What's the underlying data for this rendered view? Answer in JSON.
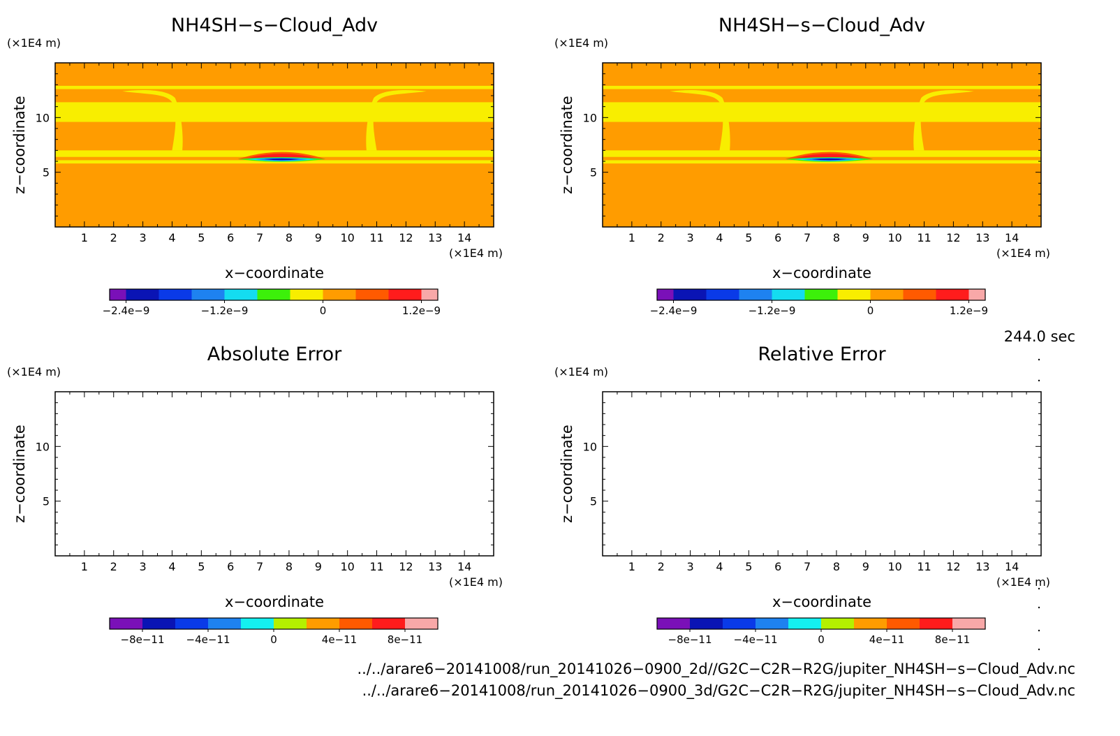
{
  "chart_data": [
    {
      "type": "heatmap",
      "title": "NH4SH−s−Cloud_Adv",
      "xlabel": "x−coordinate",
      "ylabel": "z−coordinate",
      "x_unit": "(×1E4 m)",
      "y_unit": "(×1E4 m)",
      "xlim": [
        0,
        15
      ],
      "ylim": [
        0,
        15
      ],
      "x_ticks": [
        1,
        2,
        3,
        4,
        5,
        6,
        7,
        8,
        9,
        10,
        11,
        12,
        13,
        14
      ],
      "y_ticks": [
        5,
        10
      ],
      "colorbar": {
        "min": -2.6e-09,
        "max": 1.4e-09,
        "labels": [
          {
            "value": -2.4e-09,
            "text": "−2.4e−9"
          },
          {
            "value": -1.2e-09,
            "text": "−1.2e−9"
          },
          {
            "value": 0,
            "text": "0"
          },
          {
            "value": 1.2e-09,
            "text": "1.2e−9"
          }
        ],
        "levels": [
          {
            "from": -2.6e-09,
            "to": -2.4e-09,
            "color": "#7a10b8"
          },
          {
            "from": -2.4e-09,
            "to": -2e-09,
            "color": "#0a14b4"
          },
          {
            "from": -2e-09,
            "to": -1.6e-09,
            "color": "#0a3ae8"
          },
          {
            "from": -1.6e-09,
            "to": -1.2e-09,
            "color": "#1e82f0"
          },
          {
            "from": -1.2e-09,
            "to": -8e-10,
            "color": "#14dcf0"
          },
          {
            "from": -8e-10,
            "to": -4e-10,
            "color": "#3cf00a"
          },
          {
            "from": -4e-10,
            "to": 0,
            "color": "#f8ee00"
          },
          {
            "from": 0,
            "to": 4e-10,
            "color": "#ff9c00"
          },
          {
            "from": 4e-10,
            "to": 8e-10,
            "color": "#ff5a00"
          },
          {
            "from": 8e-10,
            "to": 1.2e-09,
            "color": "#ff1c1c"
          },
          {
            "from": 1.2e-09,
            "to": 1.4e-09,
            "color": "#f8a8a8"
          }
        ]
      },
      "field": {
        "background": "#ff9c00",
        "bands": [
          {
            "z0": 12.6,
            "z1": 12.9,
            "color": "#f8ee00"
          },
          {
            "z0": 9.6,
            "z1": 11.4,
            "color": "#f8ee00"
          },
          {
            "z0": 6.4,
            "z1": 7.0,
            "color": "#f8ee00"
          },
          {
            "z0": 5.8,
            "z1": 6.1,
            "color": "#f8ee00"
          }
        ],
        "anomaly": {
          "x_center": 7.75,
          "z": 6.2,
          "half_width": 1.5,
          "thickness": 0.6
        }
      }
    },
    {
      "type": "heatmap",
      "title": "NH4SH−s−Cloud_Adv",
      "xlabel": "x−coordinate",
      "ylabel": "z−coordinate",
      "x_unit": "(×1E4 m)",
      "y_unit": "(×1E4 m)",
      "xlim": [
        0,
        15
      ],
      "ylim": [
        0,
        15
      ],
      "x_ticks": [
        1,
        2,
        3,
        4,
        5,
        6,
        7,
        8,
        9,
        10,
        11,
        12,
        13,
        14
      ],
      "y_ticks": [
        5,
        10
      ],
      "colorbar": {
        "min": -2.6e-09,
        "max": 1.4e-09,
        "labels": [
          {
            "value": -2.4e-09,
            "text": "−2.4e−9"
          },
          {
            "value": -1.2e-09,
            "text": "−1.2e−9"
          },
          {
            "value": 0,
            "text": "0"
          },
          {
            "value": 1.2e-09,
            "text": "1.2e−9"
          }
        ],
        "levels": [
          {
            "from": -2.6e-09,
            "to": -2.4e-09,
            "color": "#7a10b8"
          },
          {
            "from": -2.4e-09,
            "to": -2e-09,
            "color": "#0a14b4"
          },
          {
            "from": -2e-09,
            "to": -1.6e-09,
            "color": "#0a3ae8"
          },
          {
            "from": -1.6e-09,
            "to": -1.2e-09,
            "color": "#1e82f0"
          },
          {
            "from": -1.2e-09,
            "to": -8e-10,
            "color": "#14dcf0"
          },
          {
            "from": -8e-10,
            "to": -4e-10,
            "color": "#3cf00a"
          },
          {
            "from": -4e-10,
            "to": 0,
            "color": "#f8ee00"
          },
          {
            "from": 0,
            "to": 4e-10,
            "color": "#ff9c00"
          },
          {
            "from": 4e-10,
            "to": 8e-10,
            "color": "#ff5a00"
          },
          {
            "from": 8e-10,
            "to": 1.2e-09,
            "color": "#ff1c1c"
          },
          {
            "from": 1.2e-09,
            "to": 1.4e-09,
            "color": "#f8a8a8"
          }
        ]
      },
      "field": {
        "background": "#ff9c00",
        "bands": [
          {
            "z0": 12.6,
            "z1": 12.9,
            "color": "#f8ee00"
          },
          {
            "z0": 9.6,
            "z1": 11.4,
            "color": "#f8ee00"
          },
          {
            "z0": 6.4,
            "z1": 7.0,
            "color": "#f8ee00"
          },
          {
            "z0": 5.8,
            "z1": 6.1,
            "color": "#f8ee00"
          }
        ],
        "anomaly": {
          "x_center": 7.75,
          "z": 6.2,
          "half_width": 1.5,
          "thickness": 0.6
        }
      }
    },
    {
      "type": "heatmap",
      "title": "Absolute Error",
      "xlabel": "x−coordinate",
      "ylabel": "z−coordinate",
      "x_unit": "(×1E4 m)",
      "y_unit": "(×1E4 m)",
      "xlim": [
        0,
        15
      ],
      "ylim": [
        0,
        15
      ],
      "x_ticks": [
        1,
        2,
        3,
        4,
        5,
        6,
        7,
        8,
        9,
        10,
        11,
        12,
        13,
        14
      ],
      "y_ticks": [
        5,
        10
      ],
      "colorbar": {
        "min": -1e-10,
        "max": 1e-10,
        "labels": [
          {
            "value": -8e-11,
            "text": "−8e−11"
          },
          {
            "value": -4e-11,
            "text": "−4e−11"
          },
          {
            "value": 0,
            "text": "0"
          },
          {
            "value": 4e-11,
            "text": "4e−11"
          },
          {
            "value": 8e-11,
            "text": "8e−11"
          }
        ],
        "levels": [
          {
            "from": -1e-10,
            "to": -8e-11,
            "color": "#7a10b8"
          },
          {
            "from": -8e-11,
            "to": -6e-11,
            "color": "#0a14b4"
          },
          {
            "from": -6e-11,
            "to": -4e-11,
            "color": "#0a3ae8"
          },
          {
            "from": -4e-11,
            "to": -2e-11,
            "color": "#1e82f0"
          },
          {
            "from": -2e-11,
            "to": 0,
            "color": "#14f0f0"
          },
          {
            "from": 0,
            "to": 2e-11,
            "color": "#b4f000"
          },
          {
            "from": 2e-11,
            "to": 4e-11,
            "color": "#ff9c00"
          },
          {
            "from": 4e-11,
            "to": 6e-11,
            "color": "#ff5a00"
          },
          {
            "from": 6e-11,
            "to": 8e-11,
            "color": "#ff1c1c"
          },
          {
            "from": 8e-11,
            "to": 1e-10,
            "color": "#f8a8a8"
          }
        ]
      },
      "field": null
    },
    {
      "type": "heatmap",
      "title": "Relative Error",
      "xlabel": "x−coordinate",
      "ylabel": "z−coordinate",
      "x_unit": "(×1E4 m)",
      "y_unit": "(×1E4 m)",
      "xlim": [
        0,
        15
      ],
      "ylim": [
        0,
        15
      ],
      "x_ticks": [
        1,
        2,
        3,
        4,
        5,
        6,
        7,
        8,
        9,
        10,
        11,
        12,
        13,
        14
      ],
      "y_ticks": [
        5,
        10
      ],
      "colorbar": {
        "min": -1e-10,
        "max": 1e-10,
        "labels": [
          {
            "value": -8e-11,
            "text": "−8e−11"
          },
          {
            "value": -4e-11,
            "text": "−4e−11"
          },
          {
            "value": 0,
            "text": "0"
          },
          {
            "value": 4e-11,
            "text": "4e−11"
          },
          {
            "value": 8e-11,
            "text": "8e−11"
          }
        ],
        "levels": [
          {
            "from": -1e-10,
            "to": -8e-11,
            "color": "#7a10b8"
          },
          {
            "from": -8e-11,
            "to": -6e-11,
            "color": "#0a14b4"
          },
          {
            "from": -6e-11,
            "to": -4e-11,
            "color": "#0a3ae8"
          },
          {
            "from": -4e-11,
            "to": -2e-11,
            "color": "#1e82f0"
          },
          {
            "from": -2e-11,
            "to": 0,
            "color": "#14f0f0"
          },
          {
            "from": 0,
            "to": 2e-11,
            "color": "#b4f000"
          },
          {
            "from": 2e-11,
            "to": 4e-11,
            "color": "#ff9c00"
          },
          {
            "from": 4e-11,
            "to": 6e-11,
            "color": "#ff5a00"
          },
          {
            "from": 6e-11,
            "to": 8e-11,
            "color": "#ff1c1c"
          },
          {
            "from": 8e-11,
            "to": 1e-10,
            "color": "#f8a8a8"
          }
        ]
      },
      "field": null
    }
  ],
  "time_label": "244.0 sec",
  "footer": {
    "file_2d": "../../arare6−20141008/run_20141026−0900_2d//G2C−C2R−R2G/jupiter_NH4SH−s−Cloud_Adv.nc",
    "file_3d": "../../arare6−20141008/run_20141026−0900_3d/G2C−C2R−R2G/jupiter_NH4SH−s−Cloud_Adv.nc"
  }
}
